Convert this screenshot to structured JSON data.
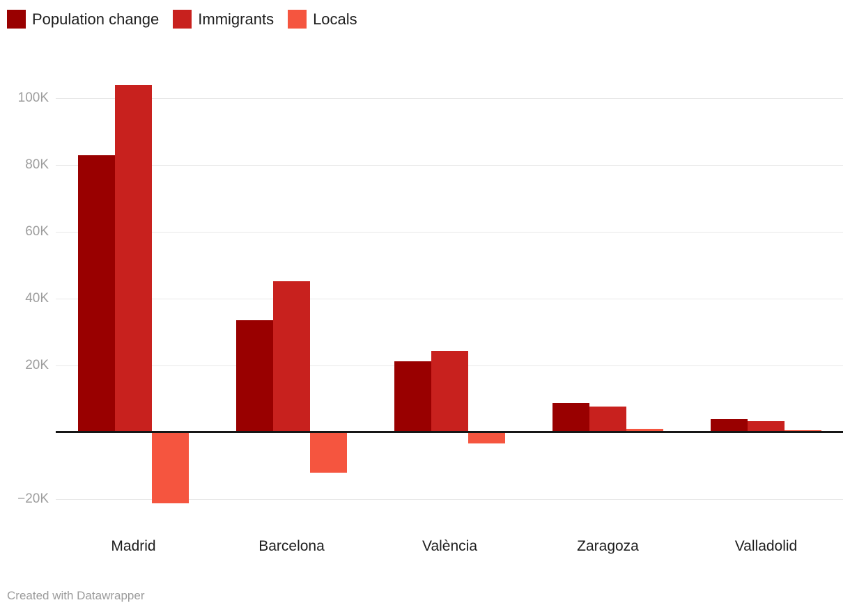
{
  "legend": {
    "items": [
      {
        "label": "Population change",
        "color": "#990000"
      },
      {
        "label": "Immigrants",
        "color": "#c8211e"
      },
      {
        "label": "Locals",
        "color": "#f5553f"
      }
    ]
  },
  "footer": {
    "text": "Created with Datawrapper"
  },
  "chart_data": {
    "type": "bar",
    "title": "",
    "xlabel": "",
    "ylabel": "",
    "categories": [
      "Madrid",
      "Barcelona",
      "València",
      "Zaragoza",
      "Valladolid"
    ],
    "series": [
      {
        "name": "Population change",
        "color": "#990000",
        "values": [
          83000,
          33500,
          21200,
          8700,
          3900
        ]
      },
      {
        "name": "Immigrants",
        "color": "#c8211e",
        "values": [
          104000,
          45300,
          24400,
          7700,
          3300
        ]
      },
      {
        "name": "Locals",
        "color": "#f5553f",
        "values": [
          -21000,
          -11800,
          -3200,
          1000,
          600
        ]
      }
    ],
    "yticks": [
      {
        "value": 100000,
        "label": "100K"
      },
      {
        "value": 80000,
        "label": "80K"
      },
      {
        "value": 60000,
        "label": "60K"
      },
      {
        "value": 40000,
        "label": "40K"
      },
      {
        "value": 20000,
        "label": "20K"
      },
      {
        "value": -20000,
        "label": "−20K"
      }
    ],
    "ylim": [
      -23000,
      110000
    ],
    "grid": true,
    "baseline": 0,
    "legend_position": "top-left",
    "attribution": "Created with Datawrapper"
  }
}
